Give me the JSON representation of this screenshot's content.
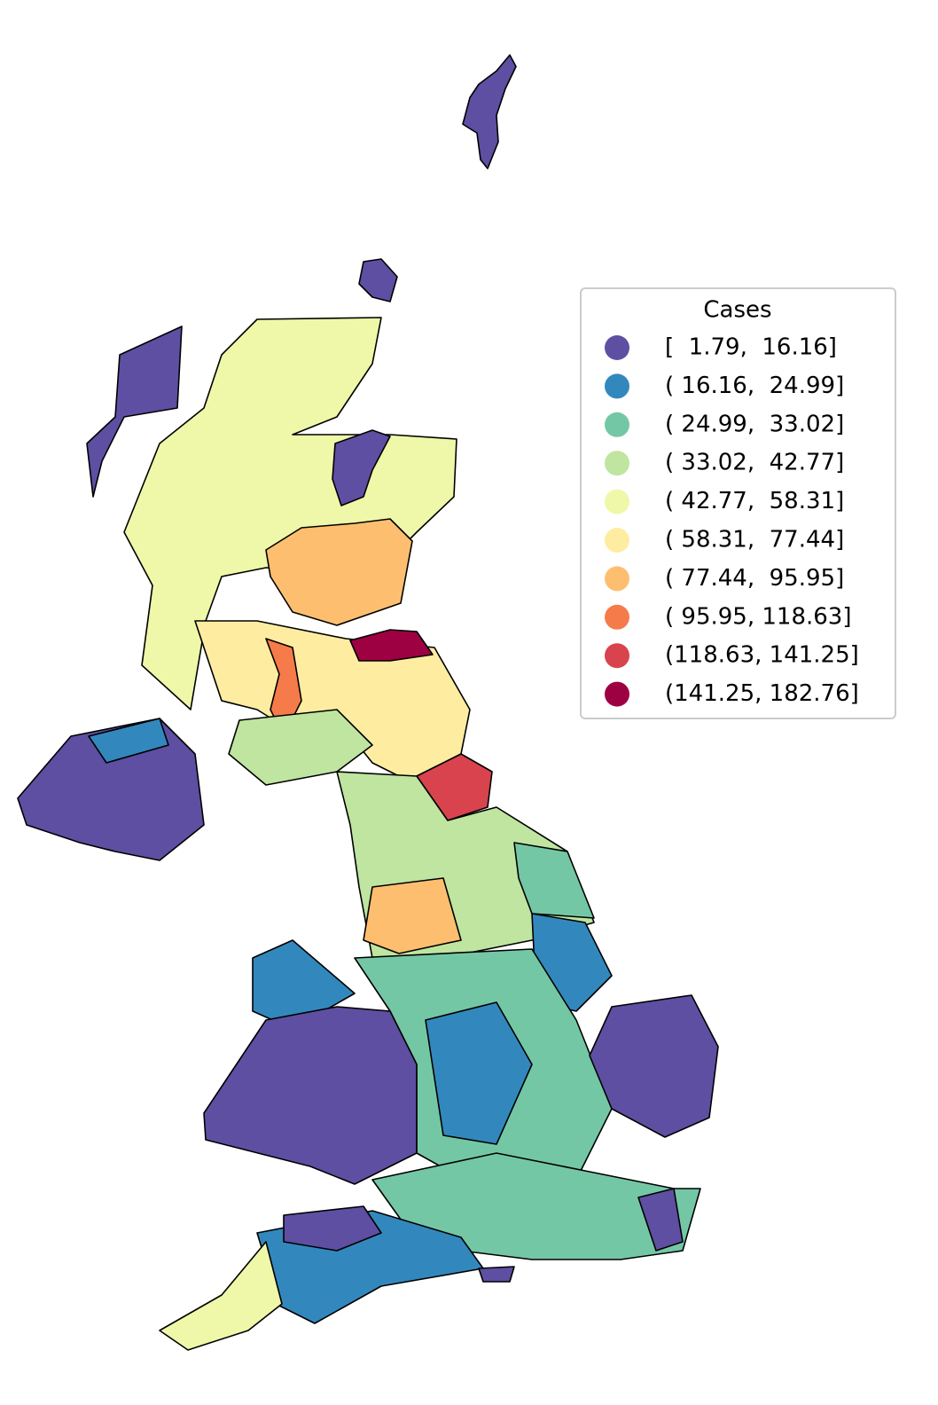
{
  "legend": {
    "title": "Cases",
    "items": [
      {
        "label": "[  1.79,  16.16]",
        "color": "#5e4fa2"
      },
      {
        "label": "( 16.16,  24.99]",
        "color": "#3288bd"
      },
      {
        "label": "( 24.99,  33.02]",
        "color": "#74c7a5"
      },
      {
        "label": "( 33.02,  42.77]",
        "color": "#bfe5a0"
      },
      {
        "label": "( 42.77,  58.31]",
        "color": "#eef8a8"
      },
      {
        "label": "( 58.31,  77.44]",
        "color": "#feeda1"
      },
      {
        "label": "( 77.44,  95.95]",
        "color": "#fdbf6f"
      },
      {
        "label": "( 95.95, 118.63]",
        "color": "#f67b4a"
      },
      {
        "label": "(118.63, 141.25]",
        "color": "#d8434e"
      },
      {
        "label": "(141.25, 182.76]",
        "color": "#9e0142"
      }
    ]
  }
}
